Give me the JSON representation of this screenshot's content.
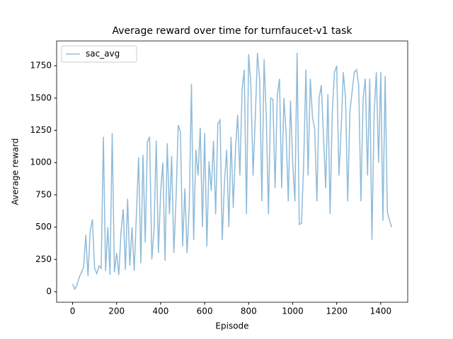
{
  "chart_data": {
    "type": "line",
    "title": "Average reward over time for turnfaucet-v1 task",
    "x_label": "Episode",
    "y_label": "Average reward",
    "x": [
      0,
      10,
      20,
      30,
      40,
      50,
      60,
      70,
      80,
      90,
      100,
      110,
      120,
      130,
      140,
      150,
      160,
      170,
      180,
      190,
      200,
      210,
      220,
      230,
      240,
      250,
      260,
      270,
      280,
      290,
      300,
      310,
      320,
      330,
      340,
      350,
      360,
      370,
      380,
      390,
      400,
      410,
      420,
      430,
      440,
      450,
      460,
      470,
      480,
      490,
      500,
      510,
      520,
      530,
      540,
      550,
      560,
      570,
      580,
      590,
      600,
      610,
      620,
      630,
      640,
      650,
      660,
      670,
      680,
      690,
      700,
      710,
      720,
      730,
      740,
      750,
      760,
      770,
      780,
      790,
      800,
      810,
      820,
      830,
      840,
      850,
      860,
      870,
      880,
      890,
      900,
      910,
      920,
      930,
      940,
      950,
      960,
      970,
      980,
      990,
      1000,
      1010,
      1020,
      1030,
      1040,
      1050,
      1060,
      1070,
      1080,
      1090,
      1100,
      1110,
      1120,
      1130,
      1140,
      1150,
      1160,
      1170,
      1180,
      1190,
      1200,
      1210,
      1220,
      1230,
      1240,
      1250,
      1260,
      1270,
      1280,
      1290,
      1300,
      1310,
      1320,
      1330,
      1340,
      1350,
      1360,
      1370,
      1380,
      1390,
      1400,
      1410,
      1420,
      1430,
      1440,
      1450
    ],
    "series": [
      {
        "name": "sac_avg",
        "color": "#8fbbd9",
        "values": [
          60,
          20,
          50,
          110,
          150,
          190,
          440,
          120,
          470,
          560,
          180,
          140,
          200,
          180,
          1200,
          160,
          500,
          130,
          1230,
          150,
          300,
          130,
          460,
          640,
          170,
          720,
          200,
          500,
          160,
          600,
          1040,
          220,
          1060,
          380,
          1160,
          1200,
          250,
          480,
          1170,
          300,
          770,
          1000,
          240,
          1150,
          600,
          1050,
          300,
          720,
          1290,
          1240,
          350,
          800,
          300,
          650,
          1610,
          400,
          1100,
          900,
          1270,
          500,
          1230,
          350,
          1010,
          780,
          1170,
          600,
          1300,
          1330,
          400,
          850,
          1100,
          500,
          1200,
          650,
          1100,
          1370,
          900,
          1560,
          1720,
          600,
          1840,
          1600,
          900,
          1350,
          1850,
          1640,
          700,
          1800,
          1350,
          600,
          1500,
          1490,
          800,
          1520,
          1650,
          800,
          1500,
          1230,
          700,
          1480,
          1000,
          700,
          1850,
          520,
          530,
          1000,
          1720,
          900,
          1650,
          1350,
          1260,
          700,
          1500,
          1600,
          1200,
          800,
          1530,
          600,
          1400,
          1700,
          1750,
          900,
          1250,
          1700,
          1500,
          700,
          1400,
          1550,
          1700,
          1720,
          1600,
          700,
          1500,
          1650,
          900,
          1650,
          400,
          1380,
          1700,
          1000,
          1700,
          550,
          1670,
          620,
          550,
          500
        ]
      }
    ],
    "xlim": [
      -72.5,
      1522.5
    ],
    "xticks": [
      0,
      200,
      400,
      600,
      800,
      1000,
      1200,
      1400
    ],
    "ylim": [
      -82,
      1942
    ],
    "yticks": [
      0,
      250,
      500,
      750,
      1000,
      1250,
      1500,
      1750
    ],
    "legend": "upper left"
  }
}
